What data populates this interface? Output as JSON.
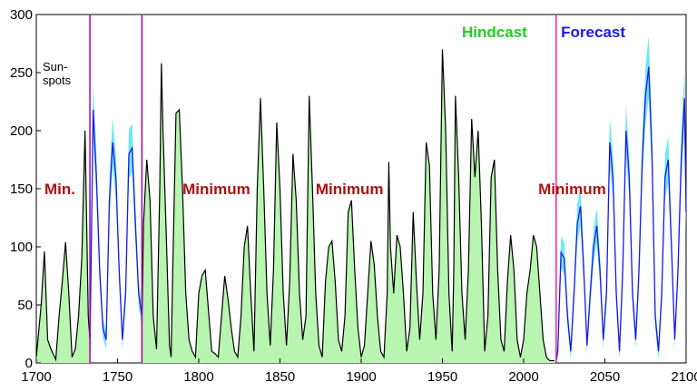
{
  "chart_data": {
    "type": "area",
    "xlim": [
      1700,
      2100
    ],
    "ylim": [
      0,
      300
    ],
    "x_ticks": [
      "1700",
      "1750",
      "1800",
      "1850",
      "1900",
      "1950",
      "2000",
      "2050",
      "2100"
    ],
    "y_ticks": [
      "0",
      "50",
      "100",
      "150",
      "200",
      "250",
      "300"
    ],
    "ylabel_lines": [
      "Sun-",
      "spots"
    ],
    "vertical_lines": [
      1733,
      1765,
      2020
    ],
    "annotations": [
      {
        "text": "Min.",
        "x": 1705,
        "y": 150,
        "color": "#b01010"
      },
      {
        "text": "Minimum",
        "x": 1790,
        "y": 150,
        "color": "#b01010"
      },
      {
        "text": "Minimum",
        "x": 1872,
        "y": 150,
        "color": "#b01010"
      },
      {
        "text": "Minimum",
        "x": 2009,
        "y": 150,
        "color": "#b01010"
      },
      {
        "text": "Hindcast",
        "x": 1962,
        "y": 285,
        "color": "#22cc22"
      },
      {
        "text": "Forecast",
        "x": 2023,
        "y": 285,
        "color": "#1a1aee"
      }
    ],
    "series": [
      {
        "name": "Hindcast",
        "color": "#000000",
        "fill": "#b8f5b0",
        "segments": [
          {
            "x": [
              1700,
              1703,
              1705,
              1707,
              1709,
              1712,
              1714,
              1716,
              1718,
              1720,
              1722,
              1724,
              1726,
              1728,
              1730,
              1732,
              1733
            ],
            "y": [
              5,
              50,
              96,
              20,
              12,
              3,
              40,
              70,
              104,
              60,
              5,
              12,
              40,
              90,
              200,
              40,
              20
            ]
          },
          {
            "x": [
              1765,
              1766,
              1768,
              1770,
              1772,
              1774,
              1776,
              1777,
              1778,
              1780,
              1782,
              1783,
              1784,
              1786,
              1788,
              1790,
              1792,
              1794,
              1796,
              1798,
              1800,
              1802,
              1804,
              1806,
              1808,
              1810,
              1812,
              1814,
              1816,
              1818,
              1820,
              1822,
              1824,
              1826,
              1828,
              1830,
              1832,
              1834,
              1836,
              1838,
              1840,
              1842,
              1844,
              1846,
              1848,
              1850,
              1852,
              1854,
              1856,
              1858,
              1860,
              1862,
              1864,
              1866,
              1868,
              1870,
              1872,
              1874,
              1876,
              1878,
              1880,
              1882,
              1884,
              1886,
              1888,
              1890,
              1892,
              1894,
              1896,
              1898,
              1900,
              1902,
              1904,
              1906,
              1908,
              1910,
              1912,
              1914,
              1916,
              1917,
              1918,
              1920,
              1922,
              1924,
              1926,
              1928,
              1930,
              1932,
              1934,
              1936,
              1938,
              1940,
              1942,
              1944,
              1946,
              1948,
              1950,
              1952,
              1954,
              1956,
              1957,
              1958,
              1960,
              1962,
              1964,
              1966,
              1968,
              1970,
              1972,
              1974,
              1976,
              1978,
              1980,
              1982,
              1984,
              1986,
              1988,
              1990,
              1992,
              1994,
              1996,
              1998,
              2000,
              2002,
              2004,
              2006,
              2008,
              2010,
              2012,
              2014,
              2016,
              2018,
              2019
            ],
            "y": [
              30,
              120,
              175,
              140,
              40,
              12,
              150,
              258,
              200,
              110,
              15,
              5,
              80,
              215,
              218,
              150,
              60,
              20,
              10,
              5,
              60,
              75,
              80,
              45,
              10,
              8,
              5,
              40,
              75,
              55,
              30,
              10,
              5,
              40,
              100,
              118,
              60,
              10,
              150,
              228,
              150,
              60,
              15,
              80,
              207,
              150,
              60,
              15,
              70,
              180,
              140,
              60,
              20,
              40,
              230,
              150,
              60,
              15,
              5,
              70,
              100,
              105,
              70,
              20,
              10,
              40,
              130,
              140,
              80,
              30,
              5,
              15,
              60,
              105,
              85,
              40,
              10,
              5,
              60,
              173,
              100,
              60,
              110,
              100,
              60,
              10,
              30,
              130,
              70,
              20,
              60,
              190,
              170,
              60,
              20,
              80,
              270,
              200,
              60,
              10,
              80,
              230,
              160,
              60,
              20,
              80,
              210,
              160,
              200,
              120,
              10,
              40,
              160,
              175,
              80,
              20,
              10,
              70,
              110,
              80,
              20,
              5,
              20,
              60,
              80,
              110,
              100,
              60,
              20,
              5,
              2,
              2,
              2
            ]
          }
        ]
      },
      {
        "name": "Forecast",
        "color": "#1a1aee",
        "band_color": "#6fe8f5",
        "band_halfwidth": 16,
        "segments": [
          {
            "x": [
              1733,
              1735,
              1737,
              1739,
              1741,
              1743,
              1745,
              1747,
              1749,
              1751,
              1753,
              1755,
              1757,
              1759,
              1761,
              1763,
              1765
            ],
            "y": [
              10,
              218,
              160,
              80,
              30,
              20,
              140,
              190,
              160,
              80,
              20,
              60,
              180,
              185,
              120,
              60,
              40
            ]
          },
          {
            "x": [
              2020,
              2021,
              2023,
              2025,
              2027,
              2029,
              2031,
              2033,
              2035,
              2037,
              2039,
              2041,
              2043,
              2045,
              2047,
              2049,
              2051,
              2053,
              2055,
              2057,
              2059,
              2061,
              2063,
              2065,
              2067,
              2069,
              2071,
              2073,
              2075,
              2077,
              2079,
              2081,
              2083,
              2085,
              2087,
              2089,
              2091,
              2093,
              2095,
              2097,
              2099,
              2100
            ],
            "y": [
              2,
              10,
              95,
              90,
              40,
              10,
              60,
              120,
              135,
              80,
              15,
              60,
              100,
              118,
              80,
              20,
              60,
              190,
              160,
              60,
              10,
              80,
              200,
              160,
              60,
              20,
              80,
              175,
              230,
              255,
              180,
              40,
              10,
              60,
              160,
              175,
              100,
              20,
              80,
              175,
              228,
              130
            ]
          }
        ]
      }
    ]
  },
  "colors": {
    "axis": "#000000",
    "grid": "#bbbbbb",
    "vline": "#b000b0",
    "forecast_vline": "#ff1aa0"
  }
}
